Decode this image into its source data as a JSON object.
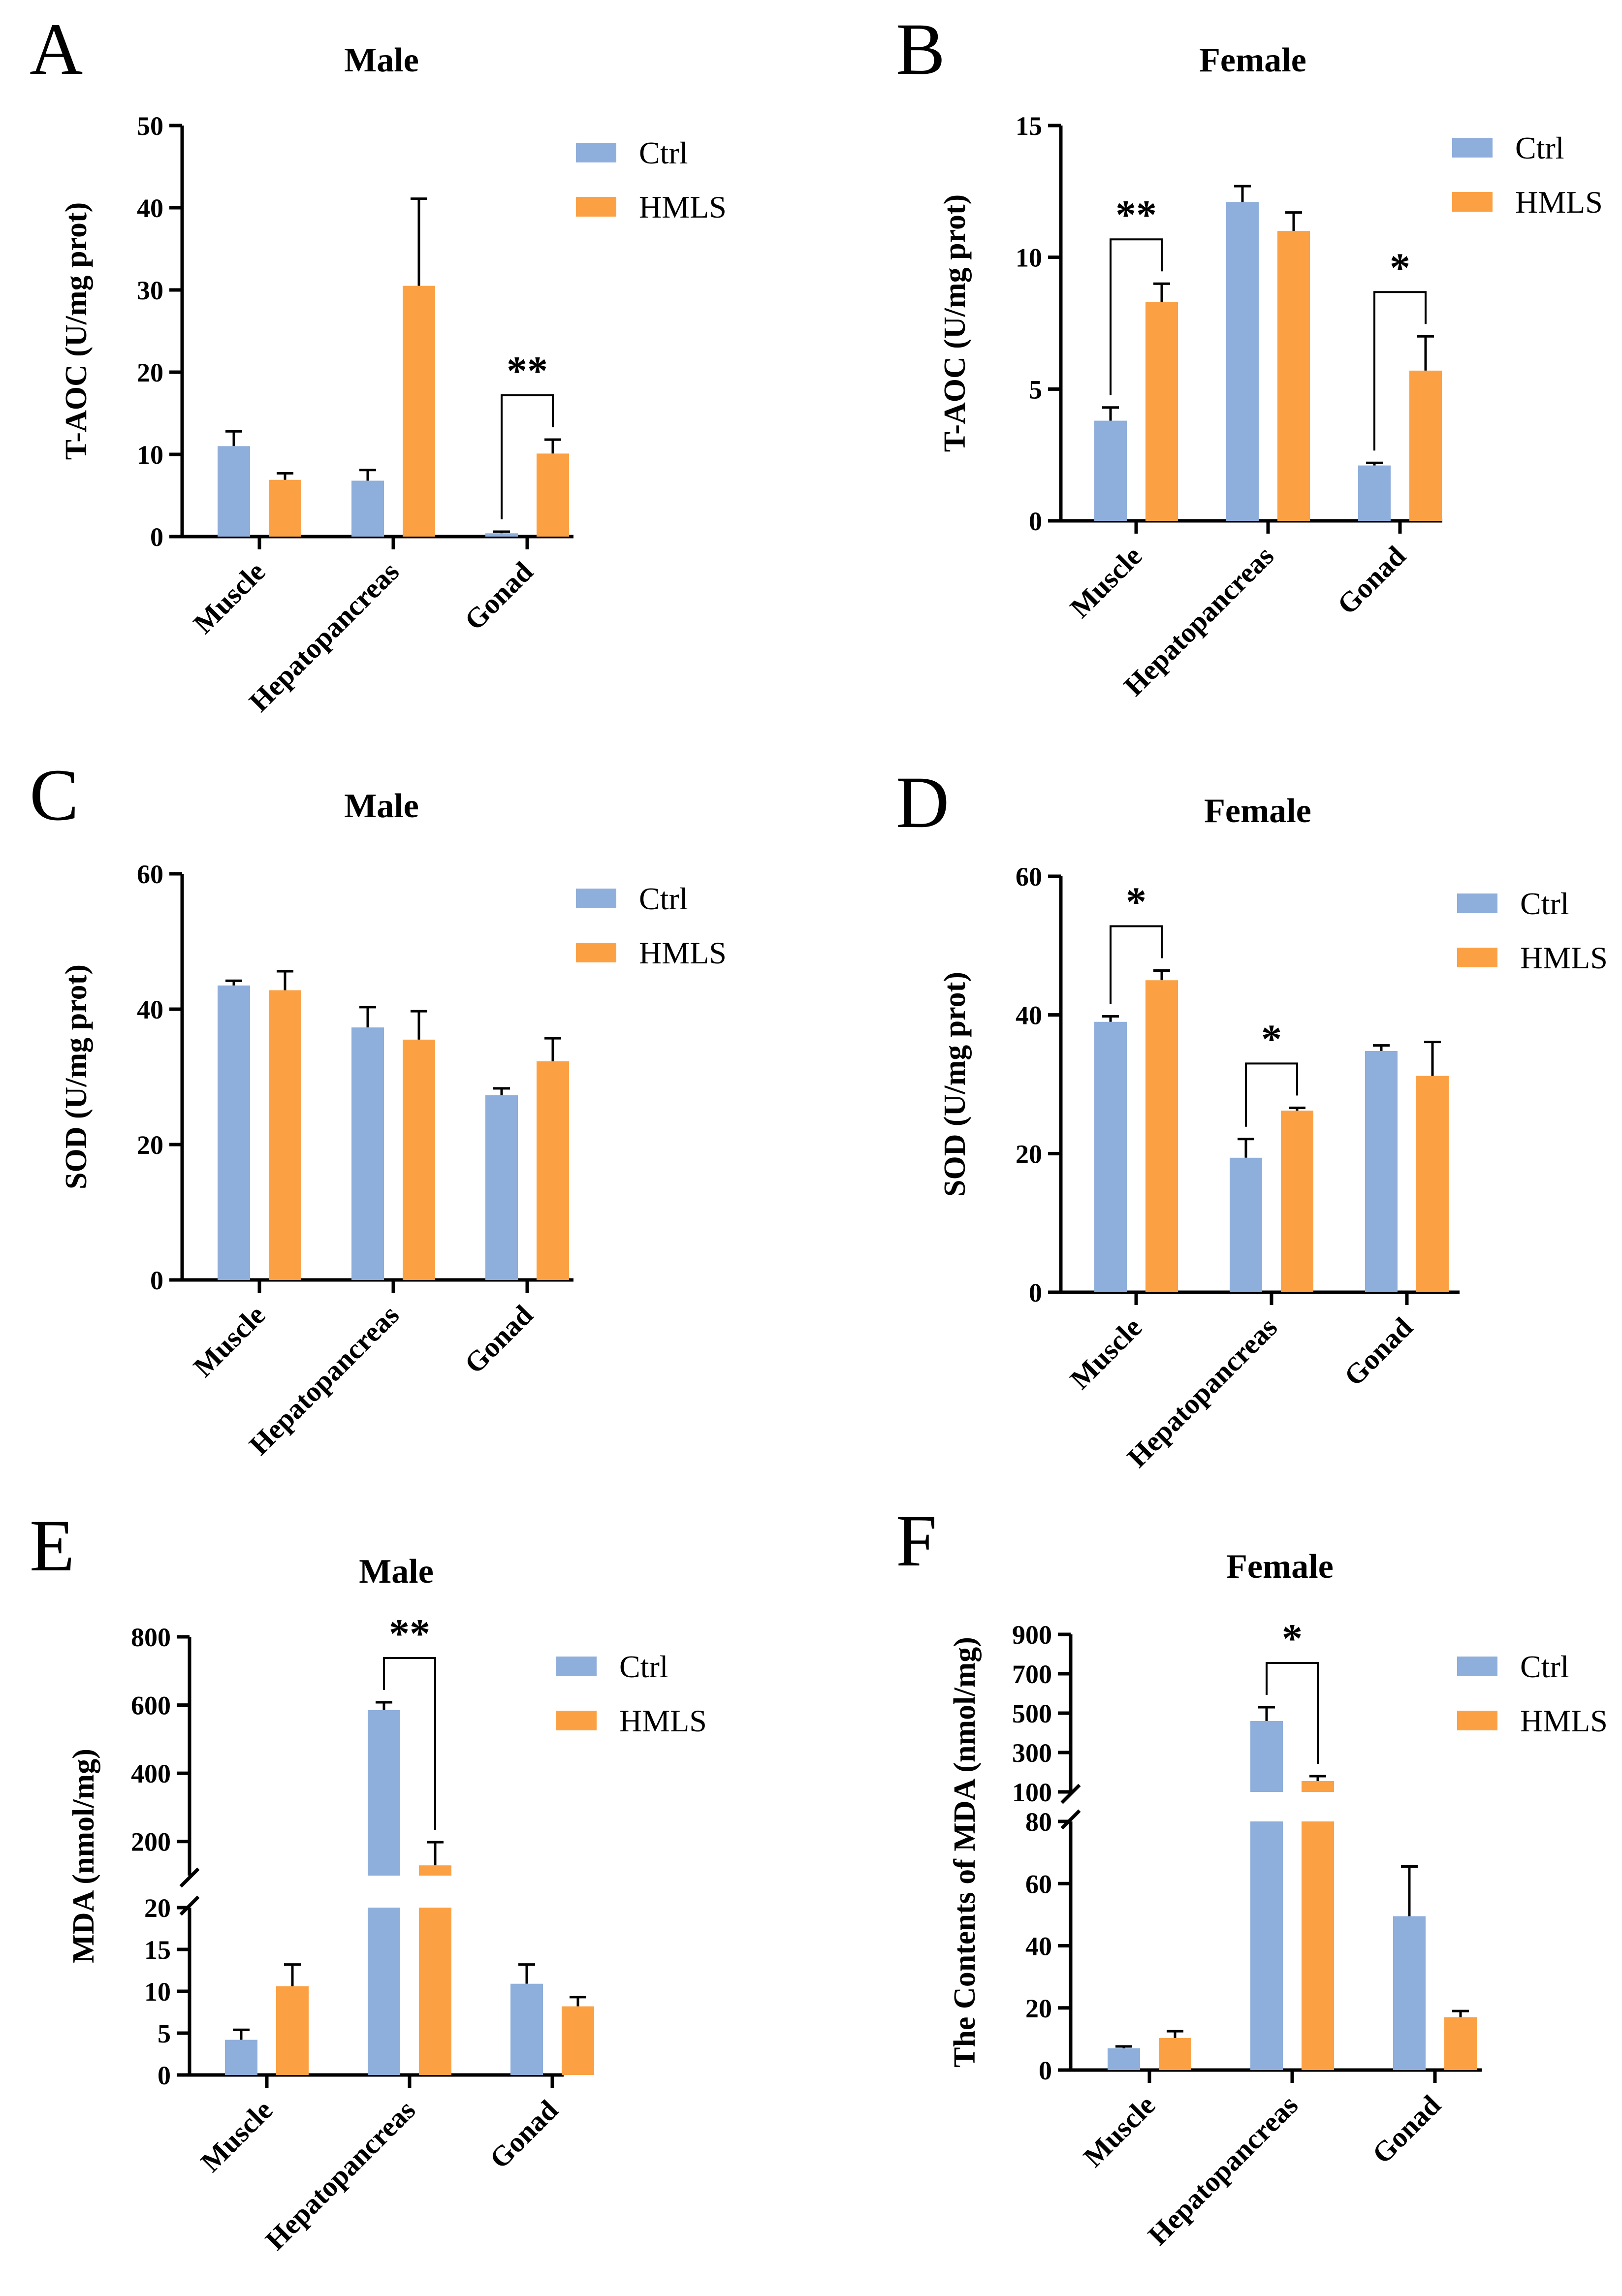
{
  "figure": {
    "colors": {
      "ctrl": "#8eaedb",
      "hmls": "#fba144",
      "axis": "#000000"
    },
    "legend_labels": [
      "Ctrl",
      "HMLS"
    ]
  },
  "chart_data": [
    {
      "id": "A",
      "letter": "A",
      "type": "bar",
      "title": "Male",
      "ylabel": "T-AOC (U/mg prot)",
      "xlabel": "",
      "categories": [
        "Muscle",
        "Hepatopancreas",
        "Gonad"
      ],
      "ylim": [
        0,
        50
      ],
      "yticks": [
        0,
        10,
        20,
        30,
        40,
        50
      ],
      "series": [
        {
          "name": "Ctrl",
          "values": [
            11,
            6.8,
            0.4
          ],
          "errors": [
            1.8,
            1.3,
            0.2
          ]
        },
        {
          "name": "HMLS",
          "values": [
            6.9,
            30.5,
            10.1
          ],
          "errors": [
            0.8,
            10.6,
            1.7
          ]
        }
      ],
      "significance": [
        {
          "category": "Gonad",
          "label": "**"
        }
      ],
      "legend": "top-right"
    },
    {
      "id": "B",
      "letter": "B",
      "type": "bar",
      "title": "Female",
      "ylabel": "T-AOC (U/mg prot)",
      "xlabel": "",
      "categories": [
        "Muscle",
        "Hepatopancreas",
        "Gonad"
      ],
      "ylim": [
        0,
        15
      ],
      "yticks": [
        0,
        5,
        10,
        15
      ],
      "series": [
        {
          "name": "Ctrl",
          "values": [
            3.8,
            12.1,
            2.1
          ],
          "errors": [
            0.5,
            0.6,
            0.1
          ]
        },
        {
          "name": "HMLS",
          "values": [
            8.3,
            11.0,
            5.7
          ],
          "errors": [
            0.7,
            0.7,
            1.3
          ]
        }
      ],
      "significance": [
        {
          "category": "Muscle",
          "label": "**"
        },
        {
          "category": "Gonad",
          "label": "*"
        }
      ],
      "legend": "top-right"
    },
    {
      "id": "C",
      "letter": "C",
      "type": "bar",
      "title": "Male",
      "ylabel": "SOD (U/mg prot)",
      "xlabel": "",
      "categories": [
        "Muscle",
        "Hepatopancreas",
        "Gonad"
      ],
      "ylim": [
        0,
        60
      ],
      "yticks": [
        0,
        20,
        40,
        60
      ],
      "series": [
        {
          "name": "Ctrl",
          "values": [
            43.5,
            37.3,
            27.3
          ],
          "errors": [
            0.7,
            3.0,
            1.0
          ]
        },
        {
          "name": "HMLS",
          "values": [
            42.8,
            35.5,
            32.3
          ],
          "errors": [
            2.8,
            4.2,
            3.4
          ]
        }
      ],
      "significance": [],
      "legend": "top-right"
    },
    {
      "id": "D",
      "letter": "D",
      "type": "bar",
      "title": "Female",
      "ylabel": "SOD (U/mg prot)",
      "xlabel": "",
      "categories": [
        "Muscle",
        "Hepatopancreas",
        "Gonad"
      ],
      "ylim": [
        0,
        60
      ],
      "yticks": [
        0,
        20,
        40,
        60
      ],
      "series": [
        {
          "name": "Ctrl",
          "values": [
            39.0,
            19.4,
            34.8
          ],
          "errors": [
            0.8,
            2.7,
            0.8
          ]
        },
        {
          "name": "HMLS",
          "values": [
            45.0,
            26.2,
            31.2
          ],
          "errors": [
            1.4,
            0.4,
            4.9
          ]
        }
      ],
      "significance": [
        {
          "category": "Muscle",
          "label": "*"
        },
        {
          "category": "Hepatopancreas",
          "label": "*"
        }
      ],
      "legend": "top-right"
    },
    {
      "id": "E",
      "letter": "E",
      "type": "bar",
      "title": "Male",
      "ylabel": "MDA (nmol/mg)",
      "xlabel": "",
      "categories": [
        "Muscle",
        "Hepatopancreas",
        "Gonad"
      ],
      "ylim": [
        0,
        800
      ],
      "axis_break": [
        20,
        100
      ],
      "yticks": [
        0,
        5,
        10,
        15,
        20,
        200,
        400,
        600,
        800
      ],
      "series": [
        {
          "name": "Ctrl",
          "values": [
            4.2,
            585,
            10.9
          ],
          "errors": [
            1.2,
            23,
            2.3
          ]
        },
        {
          "name": "HMLS",
          "values": [
            10.6,
            130,
            8.2
          ],
          "errors": [
            2.6,
            68,
            1.1
          ]
        }
      ],
      "significance": [
        {
          "category": "Hepatopancreas",
          "label": "**"
        }
      ],
      "legend": "top-right"
    },
    {
      "id": "F",
      "letter": "F",
      "type": "bar",
      "title": "Female",
      "ylabel": "The Contents of MDA (nmol/mg)",
      "xlabel": "",
      "categories": [
        "Muscle",
        "Hepatopancreas",
        "Gonad"
      ],
      "ylim": [
        0,
        900
      ],
      "axis_break": [
        80,
        100
      ],
      "yticks": [
        0,
        20,
        40,
        60,
        80,
        100,
        300,
        500,
        700,
        900
      ],
      "series": [
        {
          "name": "Ctrl",
          "values": [
            7.0,
            460,
            49.5
          ],
          "errors": [
            0.6,
            70,
            16
          ]
        },
        {
          "name": "HMLS",
          "values": [
            10.3,
            155,
            17.0
          ],
          "errors": [
            2.2,
            25,
            2.0
          ]
        }
      ],
      "significance": [
        {
          "category": "Hepatopancreas",
          "label": "*"
        }
      ],
      "legend": "top-right"
    }
  ]
}
